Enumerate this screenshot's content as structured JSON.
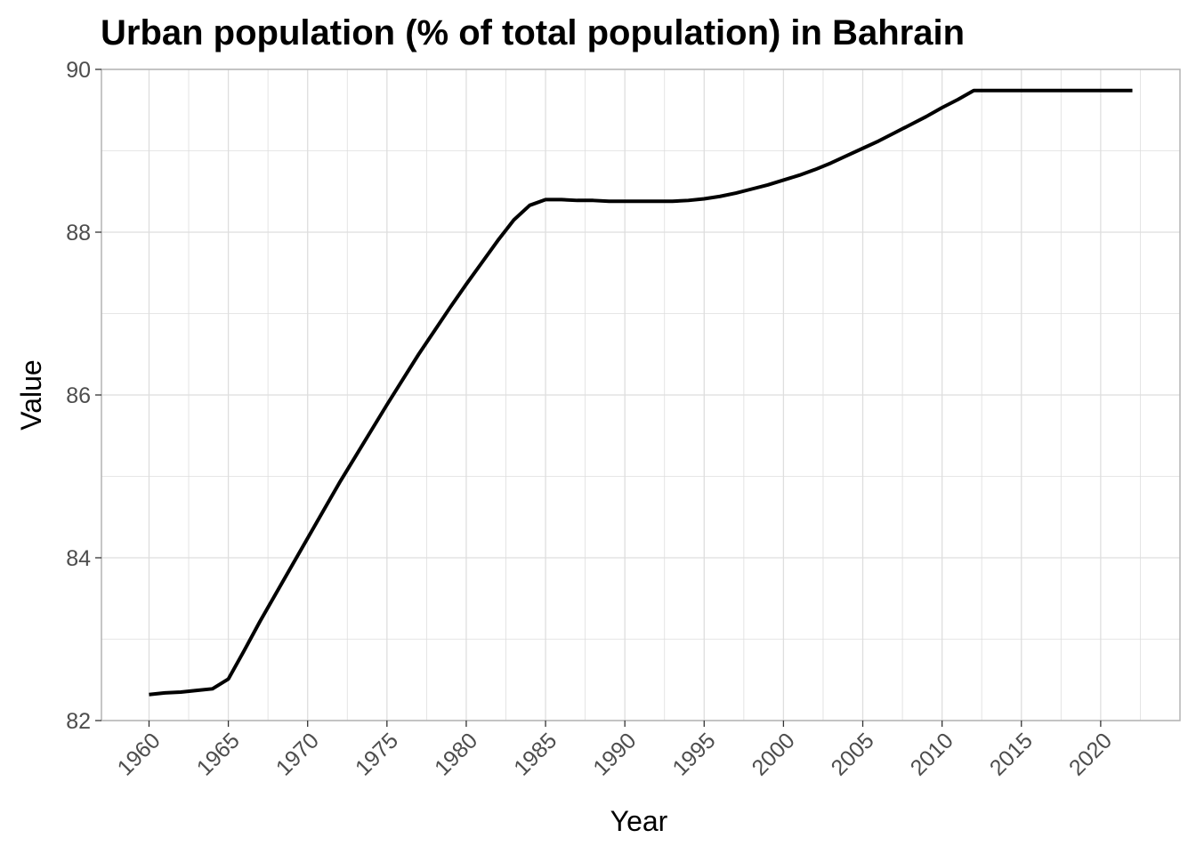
{
  "chart_data": {
    "type": "line",
    "title": "Urban population (% of total population) in Bahrain",
    "xlabel": "Year",
    "ylabel": "Value",
    "xlim": [
      1957,
      2025
    ],
    "ylim": [
      82,
      90
    ],
    "x_ticks": [
      1960,
      1965,
      1970,
      1975,
      1980,
      1985,
      1990,
      1995,
      2000,
      2005,
      2010,
      2015,
      2020
    ],
    "y_ticks": [
      82,
      84,
      86,
      88,
      90
    ],
    "grid": true,
    "legend": "none",
    "colors": {
      "line": "#000000",
      "grid": "#dedede",
      "panel_border": "#b3b3b3"
    },
    "series": [
      {
        "x": [
          1960,
          1961,
          1962,
          1963,
          1964,
          1965,
          1966,
          1967,
          1968,
          1969,
          1970,
          1971,
          1972,
          1973,
          1974,
          1975,
          1976,
          1977,
          1978,
          1979,
          1980,
          1981,
          1982,
          1983,
          1984,
          1985,
          1986,
          1987,
          1988,
          1989,
          1990,
          1991,
          1992,
          1993,
          1994,
          1995,
          1996,
          1997,
          1998,
          1999,
          2000,
          2001,
          2002,
          2003,
          2004,
          2005,
          2006,
          2007,
          2008,
          2009,
          2010,
          2011,
          2012,
          2013,
          2014,
          2015,
          2016,
          2017,
          2018,
          2019,
          2020,
          2021,
          2022
        ],
        "values": [
          82.32,
          82.34,
          82.35,
          82.37,
          82.39,
          82.51,
          82.86,
          83.22,
          83.56,
          83.9,
          84.24,
          84.58,
          84.92,
          85.24,
          85.56,
          85.88,
          86.19,
          86.5,
          86.79,
          87.08,
          87.36,
          87.63,
          87.9,
          88.15,
          88.33,
          88.4,
          88.4,
          88.39,
          88.39,
          88.38,
          88.38,
          88.38,
          88.38,
          88.38,
          88.39,
          88.41,
          88.44,
          88.48,
          88.53,
          88.58,
          88.64,
          88.7,
          88.77,
          88.85,
          88.94,
          89.03,
          89.12,
          89.22,
          89.32,
          89.42,
          89.53,
          89.63,
          89.74,
          89.74,
          89.74,
          89.74,
          89.74,
          89.74,
          89.74,
          89.74,
          89.74,
          89.74,
          89.74
        ]
      }
    ]
  }
}
